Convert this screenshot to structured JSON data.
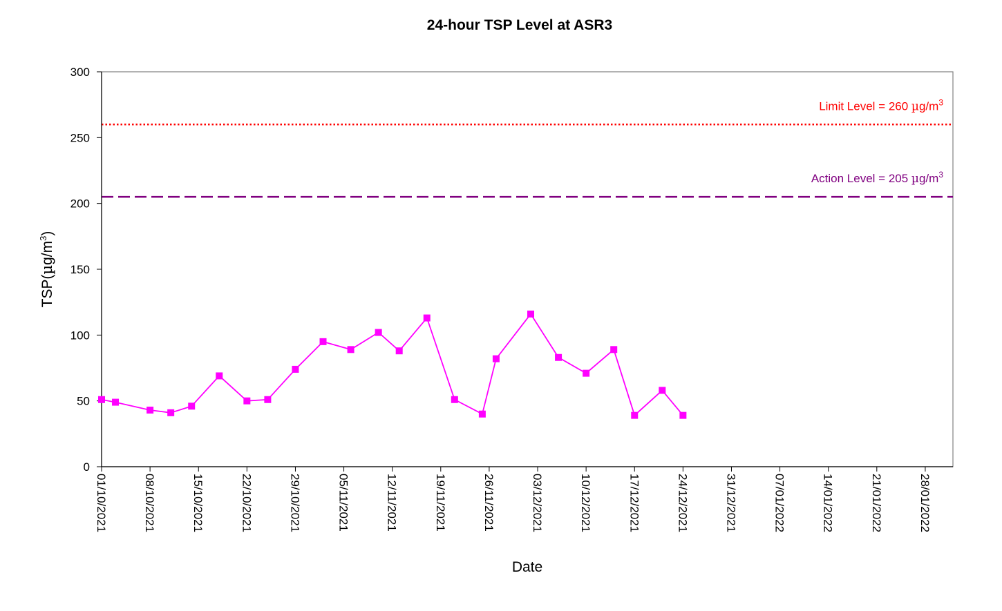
{
  "chart_data": {
    "type": "line",
    "title": "24-hour TSP Level at ASR3",
    "xlabel": "Date",
    "ylabel": "TSP(µg/m3)",
    "ylabel_parts": [
      "TSP(",
      "µ",
      "g/m",
      "3",
      ")"
    ],
    "ylim": [
      0,
      300
    ],
    "yticks": [
      "0",
      "50",
      "100",
      "150",
      "200",
      "250",
      "300"
    ],
    "xlim": [
      "2021-10-01",
      "2022-02-01"
    ],
    "xtick_labels": [
      "01/10/2021",
      "08/10/2021",
      "15/10/2021",
      "22/10/2021",
      "29/10/2021",
      "05/11/2021",
      "12/11/2021",
      "19/11/2021",
      "26/11/2021",
      "03/12/2021",
      "10/12/2021",
      "17/12/2021",
      "24/12/2021",
      "31/12/2021",
      "07/01/2022",
      "14/01/2022",
      "21/01/2022",
      "28/01/2022"
    ],
    "grid": false,
    "legend": "none",
    "series": [
      {
        "color": "#ff00ff",
        "marker": "square",
        "points": [
          [
            "2021-10-01",
            51
          ],
          [
            "2021-10-03",
            49
          ],
          [
            "2021-10-08",
            43
          ],
          [
            "2021-10-11",
            41
          ],
          [
            "2021-10-14",
            46
          ],
          [
            "2021-10-18",
            69
          ],
          [
            "2021-10-22",
            50
          ],
          [
            "2021-10-25",
            51
          ],
          [
            "2021-10-29",
            74
          ],
          [
            "2021-11-02",
            95
          ],
          [
            "2021-11-06",
            89
          ],
          [
            "2021-11-10",
            102
          ],
          [
            "2021-11-13",
            88
          ],
          [
            "2021-11-17",
            113
          ],
          [
            "2021-11-21",
            51
          ],
          [
            "2021-11-25",
            40
          ],
          [
            "2021-11-27",
            82
          ],
          [
            "2021-12-02",
            116
          ],
          [
            "2021-12-06",
            83
          ],
          [
            "2021-12-10",
            71
          ],
          [
            "2021-12-14",
            89
          ],
          [
            "2021-12-17",
            39
          ],
          [
            "2021-12-21",
            58
          ],
          [
            "2021-12-24",
            39
          ]
        ]
      }
    ],
    "reference_lines": [
      {
        "value": 260,
        "label_parts": [
          "Limit Level = 260 ",
          "µ",
          "g/m",
          "3"
        ],
        "color": "#ff0000",
        "style": "dotted"
      },
      {
        "value": 205,
        "label_parts": [
          "Action Level = 205 ",
          "µ",
          "g/m",
          "3"
        ],
        "color": "#800080",
        "style": "dashed"
      }
    ]
  }
}
